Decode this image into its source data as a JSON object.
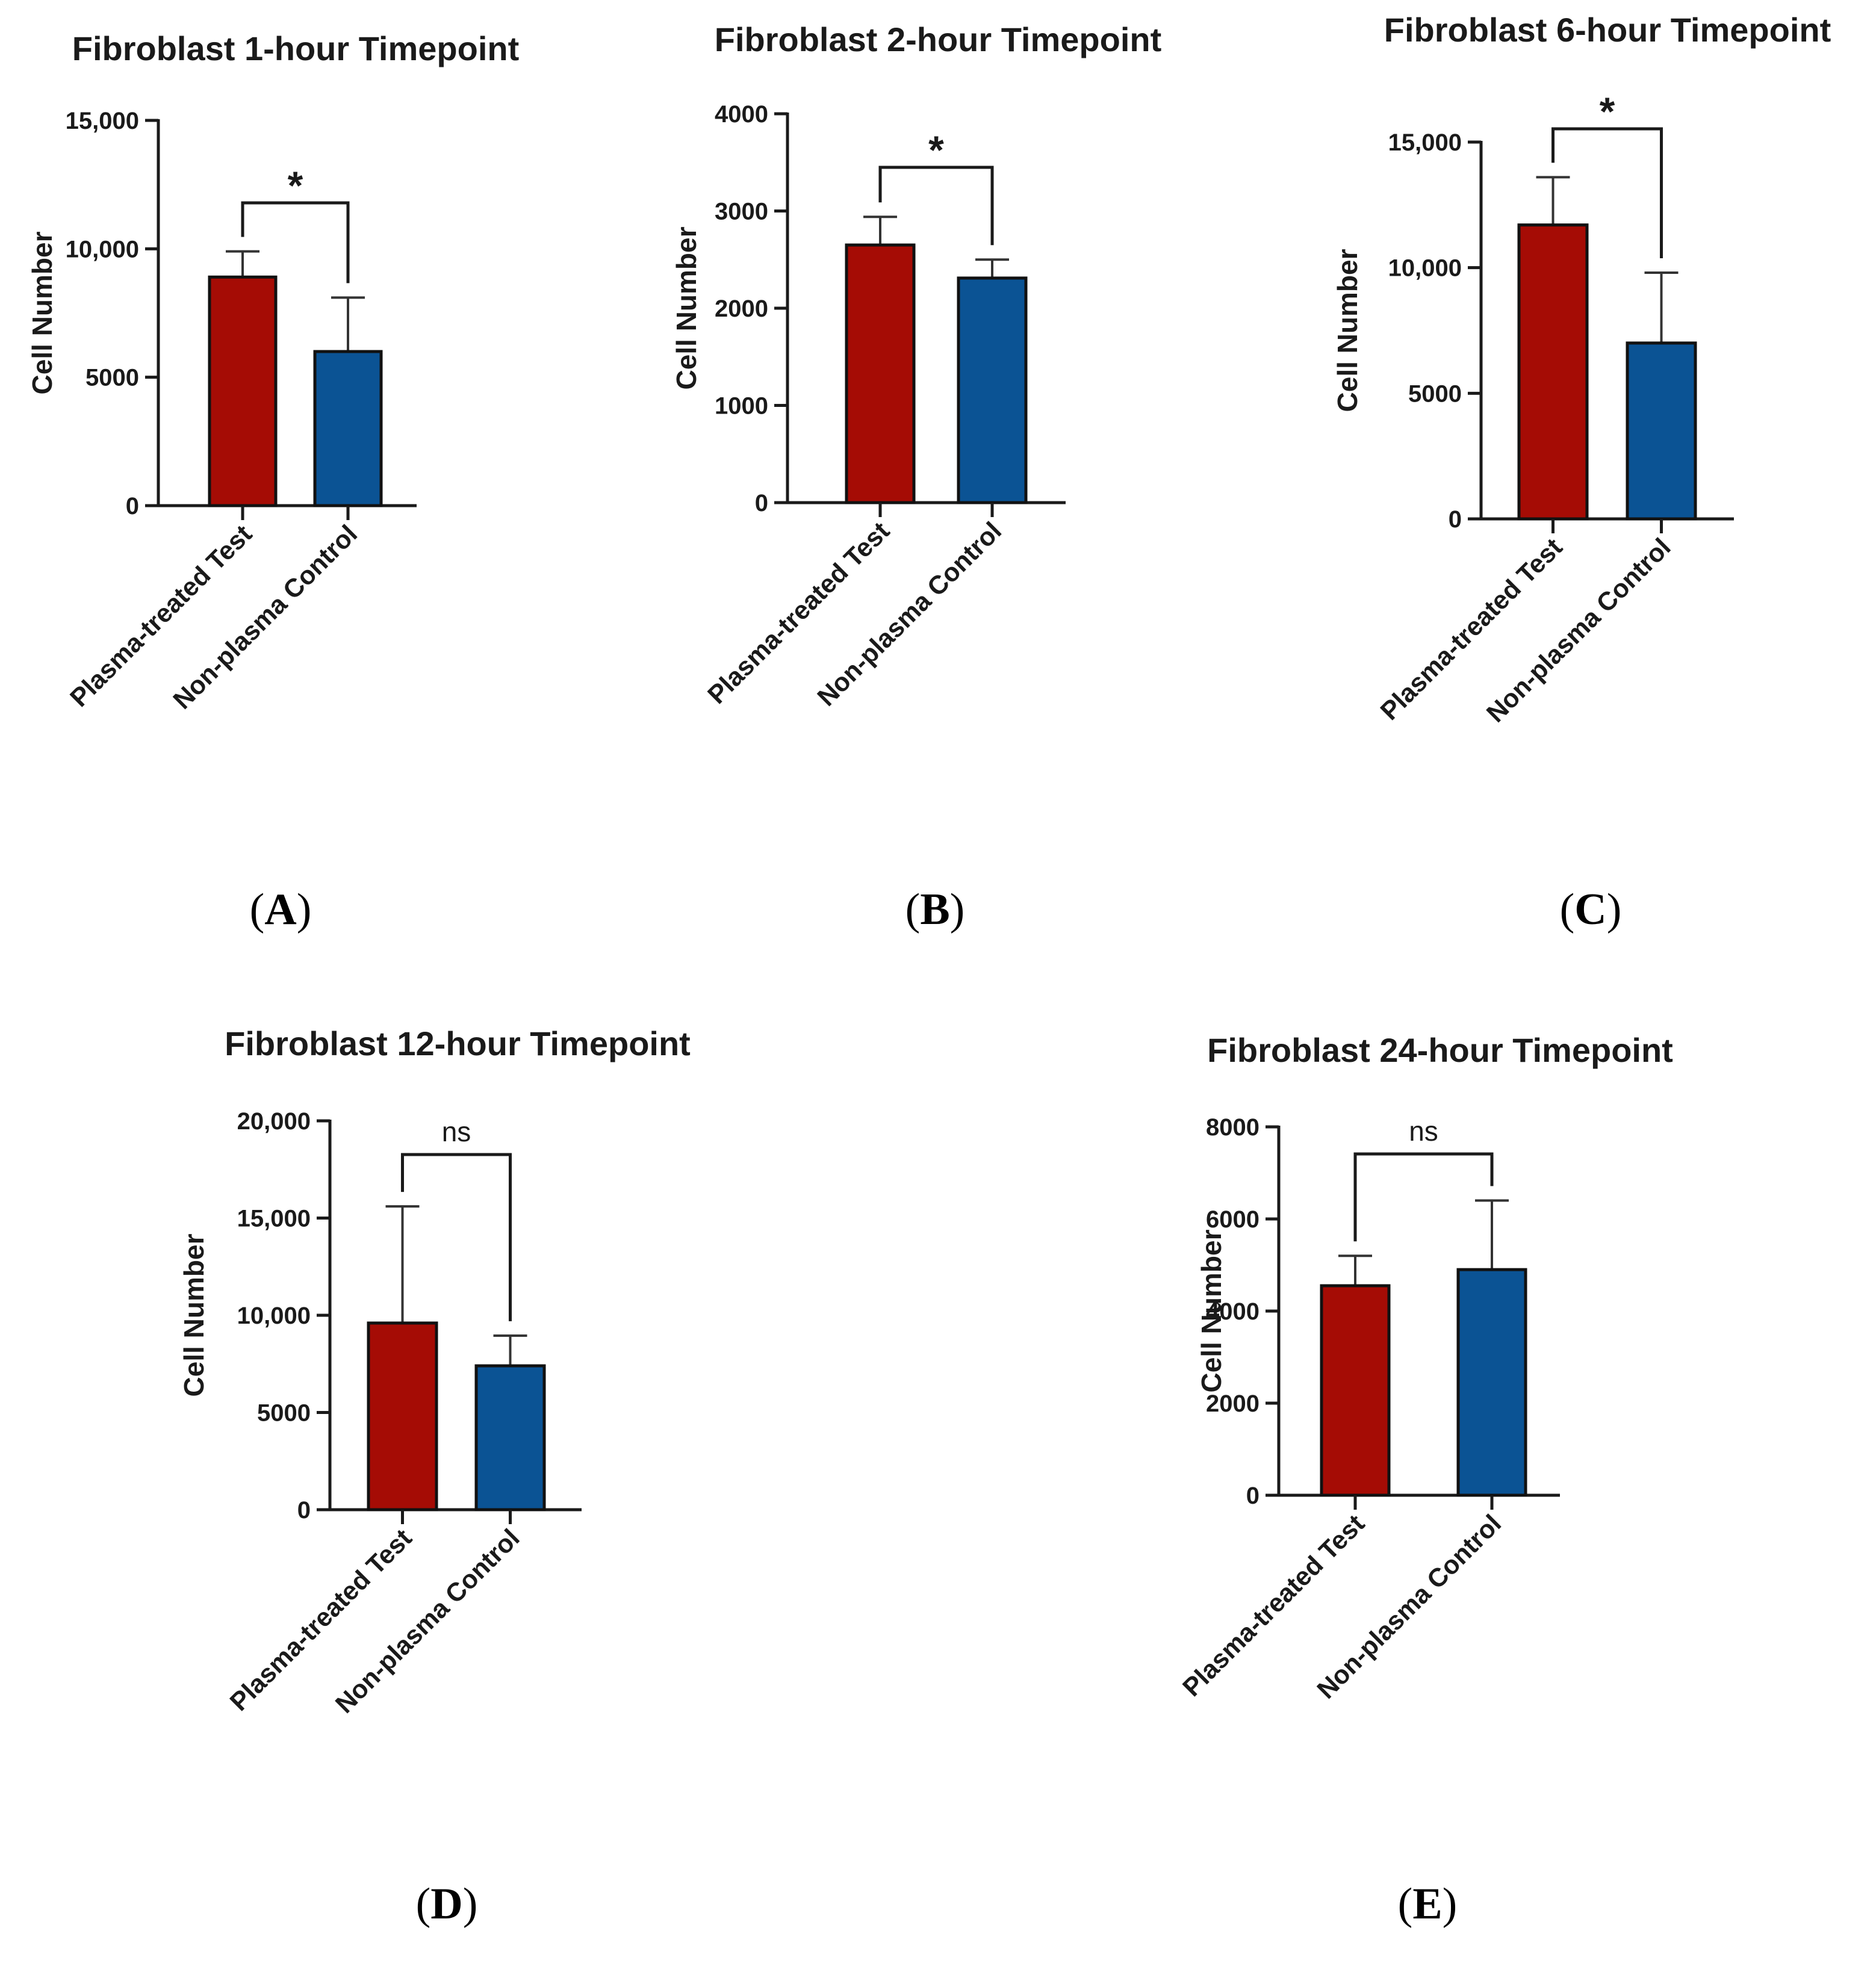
{
  "figure": {
    "y_axis_label": "Cell Number",
    "categories": [
      "Plasma-treated Test",
      "Non-plasma Control"
    ],
    "colors": {
      "test": "#a50c05",
      "control": "#0b5394",
      "axis": "#1a1a1a"
    }
  },
  "chart_data": [
    {
      "type": "bar",
      "panel": "A",
      "title": "Fibroblast 1-hour Timepoint",
      "ylabel": "Cell Number",
      "categories": [
        "Plasma-treated Test",
        "Non-plasma Control"
      ],
      "values": [
        8900,
        6000
      ],
      "error": [
        1000,
        2100
      ],
      "ylim": [
        0,
        15000
      ],
      "yticks": [
        0,
        5000,
        10000,
        15000
      ],
      "ytick_labels": [
        "0",
        "5000",
        "10,000",
        "15,000"
      ],
      "significance": "*"
    },
    {
      "type": "bar",
      "panel": "B",
      "title": "Fibroblast 2-hour Timepoint",
      "ylabel": "Cell Number",
      "categories": [
        "Plasma-treated Test",
        "Non-plasma Control"
      ],
      "values": [
        2650,
        2310
      ],
      "error": [
        290,
        190
      ],
      "ylim": [
        0,
        4000
      ],
      "yticks": [
        0,
        1000,
        2000,
        3000,
        4000
      ],
      "ytick_labels": [
        "0",
        "1000",
        "2000",
        "3000",
        "4000"
      ],
      "significance": "*"
    },
    {
      "type": "bar",
      "panel": "C",
      "title": "Fibroblast 6-hour Timepoint",
      "ylabel": "Cell Number",
      "categories": [
        "Plasma-treated Test",
        "Non-plasma Control"
      ],
      "values": [
        11700,
        7000
      ],
      "error": [
        1900,
        2800
      ],
      "ylim": [
        0,
        15000
      ],
      "yticks": [
        0,
        5000,
        10000,
        15000
      ],
      "ytick_labels": [
        "0",
        "5000",
        "10,000",
        "15,000"
      ],
      "significance": "*"
    },
    {
      "type": "bar",
      "panel": "D",
      "title": "Fibroblast 12-hour Timepoint",
      "ylabel": "Cell Number",
      "categories": [
        "Plasma-treated Test",
        "Non-plasma Control"
      ],
      "values": [
        9600,
        7400
      ],
      "error": [
        6000,
        1550
      ],
      "ylim": [
        0,
        20000
      ],
      "yticks": [
        0,
        5000,
        10000,
        15000,
        20000
      ],
      "ytick_labels": [
        "0",
        "5000",
        "10,000",
        "15,000",
        "20,000"
      ],
      "significance": "ns"
    },
    {
      "type": "bar",
      "panel": "E",
      "title": "Fibroblast 24-hour Timepoint",
      "ylabel": "Cell Number",
      "categories": [
        "Plasma-treated Test",
        "Non-plasma Control"
      ],
      "values": [
        4550,
        4900
      ],
      "error": [
        650,
        1500
      ],
      "ylim": [
        0,
        8000
      ],
      "yticks": [
        0,
        2000,
        4000,
        6000,
        8000
      ],
      "ytick_labels": [
        "0",
        "2000",
        "4000",
        "6000",
        "8000"
      ],
      "significance": "ns"
    }
  ],
  "panel_labels": [
    {
      "open": "(",
      "letter": "A",
      "close": ")"
    },
    {
      "open": "(",
      "letter": "B",
      "close": ")"
    },
    {
      "open": "(",
      "letter": "C",
      "close": ")"
    },
    {
      "open": "(",
      "letter": "D",
      "close": ")"
    },
    {
      "open": "(",
      "letter": "E",
      "close": ")"
    }
  ]
}
